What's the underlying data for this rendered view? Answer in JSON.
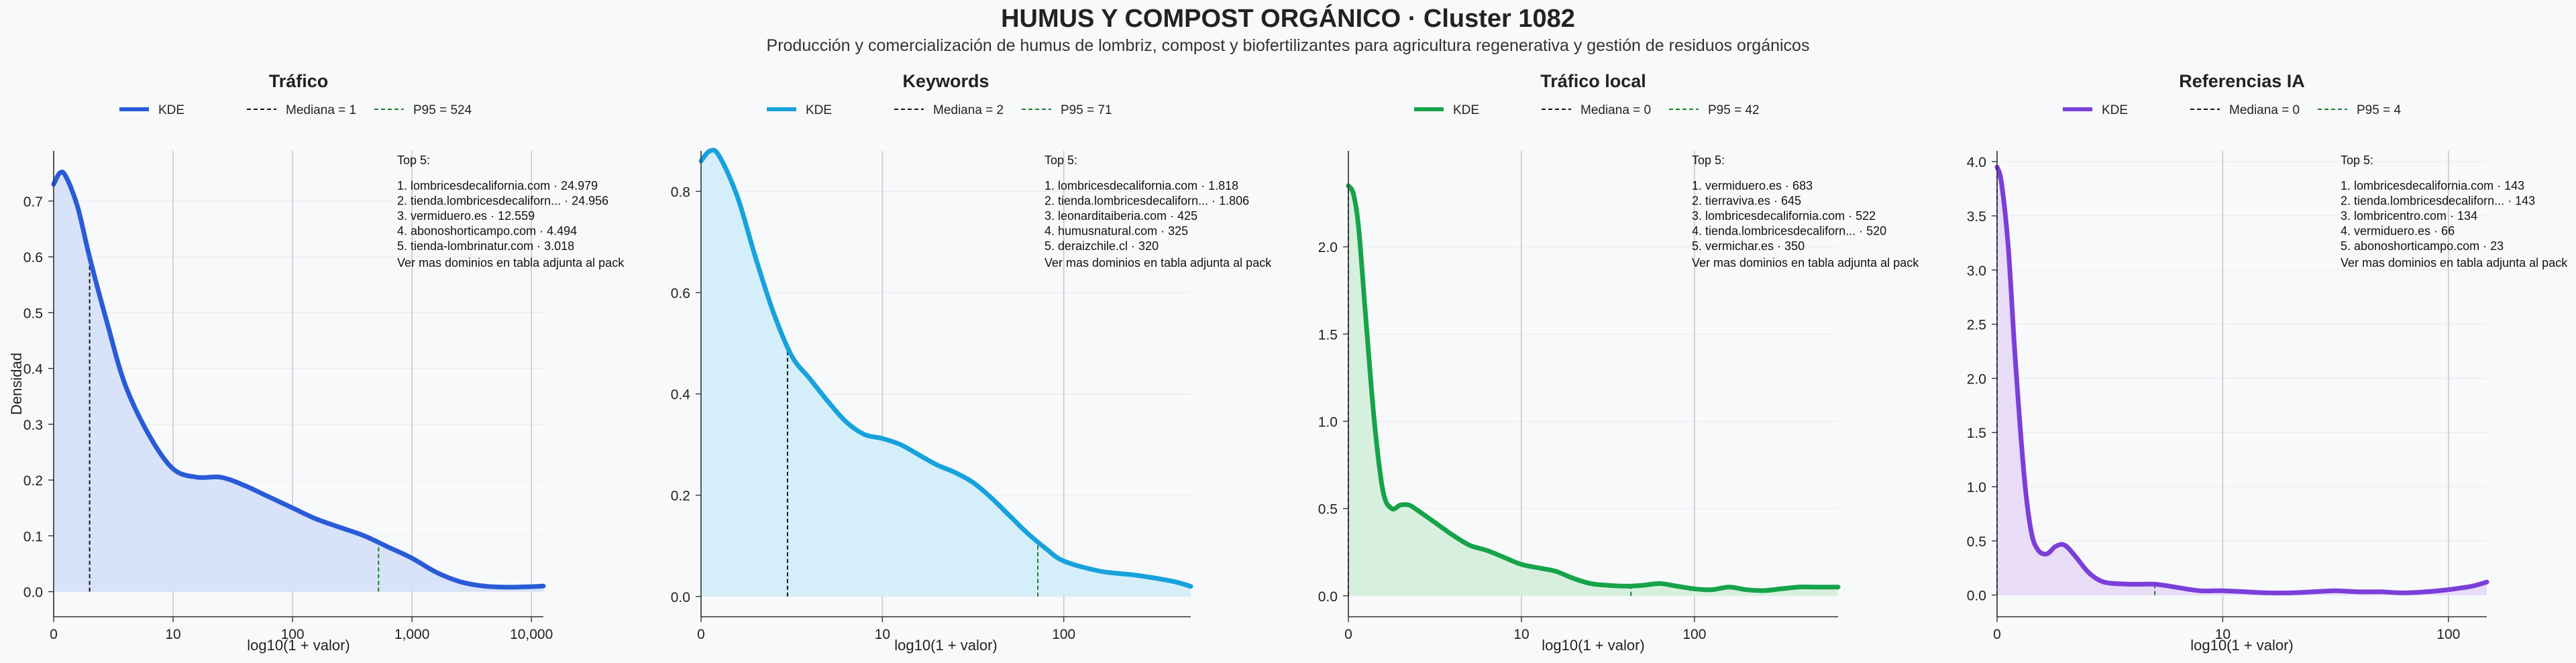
{
  "figure": {
    "title": "HUMUS Y COMPOST ORGÁNICO · Cluster 1082",
    "subtitle": "Producción y comercialización de humus de lombriz, compost y biofertilizantes para agricultura regenerativa y gestión de residuos orgánicos"
  },
  "chart_data": [
    {
      "type": "area",
      "title": "Tráfico",
      "color": "#2a5bd7",
      "fill": "#d6e0f8",
      "xlabel": "log10(1 + valor)",
      "ylabel": "Densidad",
      "xlim": [
        0,
        4.1
      ],
      "ylim": [
        -0.045,
        0.79
      ],
      "x_ticks": [
        0,
        1,
        2,
        3,
        4
      ],
      "x_tick_labels": [
        "0",
        "10",
        "100",
        "1,000",
        "10,000"
      ],
      "y_ticks": [
        0,
        0.1,
        0.2,
        0.3,
        0.4,
        0.5,
        0.6,
        0.7
      ],
      "y_tick_labels": [
        "0.0",
        "0.1",
        "0.2",
        "0.3",
        "0.4",
        "0.5",
        "0.6",
        "0.7"
      ],
      "legend": [
        "KDE",
        "Mediana = 1",
        "P95 = 524"
      ],
      "median_x": 0.301,
      "p95_x": 2.72,
      "series": [
        {
          "name": "KDE",
          "x": [
            0,
            0.05,
            0.1,
            0.2,
            0.3,
            0.45,
            0.6,
            0.8,
            1.0,
            1.2,
            1.4,
            1.6,
            1.8,
            2.0,
            2.2,
            2.4,
            2.6,
            2.8,
            3.0,
            3.2,
            3.4,
            3.6,
            3.8,
            4.0,
            4.1
          ],
          "y": [
            0.73,
            0.75,
            0.745,
            0.69,
            0.6,
            0.48,
            0.37,
            0.28,
            0.22,
            0.205,
            0.205,
            0.19,
            0.17,
            0.15,
            0.13,
            0.115,
            0.1,
            0.08,
            0.06,
            0.035,
            0.018,
            0.01,
            0.008,
            0.009,
            0.01
          ]
        }
      ],
      "top5": {
        "heading": "Top 5:",
        "items": [
          "1. lombricesdecalifornia.com · 24.979",
          "2. tienda.lombricesdecaliforn... · 24.956",
          "3. vermiduero.es · 12.559",
          "4. abonoshorticampo.com · 4.494",
          "5. tienda-lombrinatur.com · 3.018"
        ],
        "footer": "Ver mas dominios en tabla adjunta al pack"
      }
    },
    {
      "type": "area",
      "title": "Keywords",
      "color": "#17a2dc",
      "fill": "#d2eefa",
      "xlabel": "log10(1 + valor)",
      "ylabel": "",
      "xlim": [
        0,
        2.7
      ],
      "ylim": [
        -0.04,
        0.88
      ],
      "x_ticks": [
        0,
        1,
        2
      ],
      "x_tick_labels": [
        "0",
        "10",
        "100"
      ],
      "y_ticks": [
        0,
        0.2,
        0.4,
        0.6,
        0.8
      ],
      "y_tick_labels": [
        "0.0",
        "0.2",
        "0.4",
        "0.6",
        "0.8"
      ],
      "legend": [
        "KDE",
        "Mediana = 2",
        "P95 = 71"
      ],
      "median_x": 0.477,
      "p95_x": 1.857,
      "series": [
        {
          "name": "KDE",
          "x": [
            0,
            0.05,
            0.1,
            0.2,
            0.3,
            0.4,
            0.5,
            0.6,
            0.7,
            0.8,
            0.9,
            1.0,
            1.1,
            1.2,
            1.3,
            1.4,
            1.5,
            1.6,
            1.7,
            1.8,
            1.9,
            2.0,
            2.2,
            2.4,
            2.6,
            2.7
          ],
          "y": [
            0.86,
            0.88,
            0.87,
            0.79,
            0.67,
            0.56,
            0.475,
            0.43,
            0.385,
            0.345,
            0.32,
            0.312,
            0.3,
            0.28,
            0.26,
            0.245,
            0.225,
            0.195,
            0.16,
            0.125,
            0.095,
            0.07,
            0.05,
            0.042,
            0.03,
            0.02
          ]
        }
      ],
      "top5": {
        "heading": "Top 5:",
        "items": [
          "1. lombricesdecalifornia.com · 1.818",
          "2. tienda.lombricesdecaliforn... · 1.806",
          "3. leonarditaiberia.com · 425",
          "4. humusnatural.com · 325",
          "5. deraizchile.cl · 320"
        ],
        "footer": "Ver mas dominios en tabla adjunta al pack"
      }
    },
    {
      "type": "area",
      "title": "Tráfico local",
      "color": "#16a34a",
      "fill": "#d5efdc",
      "xlabel": "log10(1 + valor)",
      "ylabel": "",
      "xlim": [
        0,
        2.83
      ],
      "ylim": [
        -0.12,
        2.55
      ],
      "x_ticks": [
        0,
        1,
        2
      ],
      "x_tick_labels": [
        "0",
        "10",
        "100"
      ],
      "y_ticks": [
        0,
        0.5,
        1.0,
        1.5,
        2.0
      ],
      "y_tick_labels": [
        "0.0",
        "0.5",
        "1.0",
        "1.5",
        "2.0"
      ],
      "legend": [
        "KDE",
        "Mediana = 0",
        "P95 = 42"
      ],
      "median_x": 0,
      "p95_x": 1.633,
      "series": [
        {
          "name": "KDE",
          "x": [
            0,
            0.03,
            0.06,
            0.1,
            0.15,
            0.2,
            0.25,
            0.3,
            0.35,
            0.4,
            0.5,
            0.6,
            0.7,
            0.8,
            0.9,
            1.0,
            1.1,
            1.2,
            1.3,
            1.4,
            1.5,
            1.6,
            1.7,
            1.8,
            1.9,
            2.0,
            2.1,
            2.2,
            2.3,
            2.4,
            2.5,
            2.6,
            2.7,
            2.83
          ],
          "y": [
            2.35,
            2.3,
            2.1,
            1.6,
            1.0,
            0.6,
            0.5,
            0.52,
            0.52,
            0.49,
            0.42,
            0.35,
            0.29,
            0.26,
            0.22,
            0.18,
            0.16,
            0.14,
            0.1,
            0.07,
            0.06,
            0.055,
            0.06,
            0.07,
            0.055,
            0.04,
            0.035,
            0.05,
            0.035,
            0.03,
            0.04,
            0.05,
            0.05,
            0.05
          ]
        }
      ],
      "top5": {
        "heading": "Top 5:",
        "items": [
          "1. vermiduero.es · 683",
          "2. tierraviva.es · 645",
          "3. lombricesdecalifornia.com · 522",
          "4. tienda.lombricesdecaliforn... · 520",
          "5. vermichar.es · 350"
        ],
        "footer": "Ver mas dominios en tabla adjunta al pack"
      }
    },
    {
      "type": "area",
      "title": "Referencias IA",
      "color": "#7b3fd9",
      "fill": "#e7daf7",
      "xlabel": "log10(1 + valor)",
      "ylabel": "",
      "xlim": [
        0,
        2.17
      ],
      "ylim": [
        -0.2,
        4.1
      ],
      "x_ticks": [
        0,
        1,
        2
      ],
      "x_tick_labels": [
        "0",
        "10",
        "100"
      ],
      "y_ticks": [
        0,
        0.5,
        1.0,
        1.5,
        2.0,
        2.5,
        3.0,
        3.5,
        4.0
      ],
      "y_tick_labels": [
        "0.0",
        "0.5",
        "1.0",
        "1.5",
        "2.0",
        "2.5",
        "3.0",
        "3.5",
        "4.0"
      ],
      "legend": [
        "KDE",
        "Mediana = 0",
        "P95 = 4"
      ],
      "median_x": 0,
      "p95_x": 0.699,
      "series": [
        {
          "name": "KDE",
          "x": [
            0,
            0.02,
            0.05,
            0.08,
            0.12,
            0.15,
            0.18,
            0.22,
            0.26,
            0.3,
            0.35,
            0.4,
            0.45,
            0.5,
            0.6,
            0.7,
            0.8,
            0.9,
            1.0,
            1.1,
            1.2,
            1.3,
            1.4,
            1.5,
            1.6,
            1.7,
            1.8,
            1.9,
            2.0,
            2.1,
            2.17
          ],
          "y": [
            3.95,
            3.8,
            3.2,
            2.2,
            1.1,
            0.6,
            0.42,
            0.38,
            0.45,
            0.46,
            0.35,
            0.22,
            0.14,
            0.11,
            0.1,
            0.1,
            0.07,
            0.04,
            0.04,
            0.03,
            0.02,
            0.02,
            0.03,
            0.04,
            0.03,
            0.03,
            0.02,
            0.03,
            0.05,
            0.08,
            0.12
          ]
        }
      ],
      "top5": {
        "heading": "Top 5:",
        "items": [
          "1. lombricesdecalifornia.com · 143",
          "2. tienda.lombricesdecaliforn... · 143",
          "3. lombricentro.com · 134",
          "4. vermiduero.es · 66",
          "5. abonoshorticampo.com · 23"
        ],
        "footer": "Ver mas dominios en tabla adjunta al pack"
      }
    }
  ]
}
